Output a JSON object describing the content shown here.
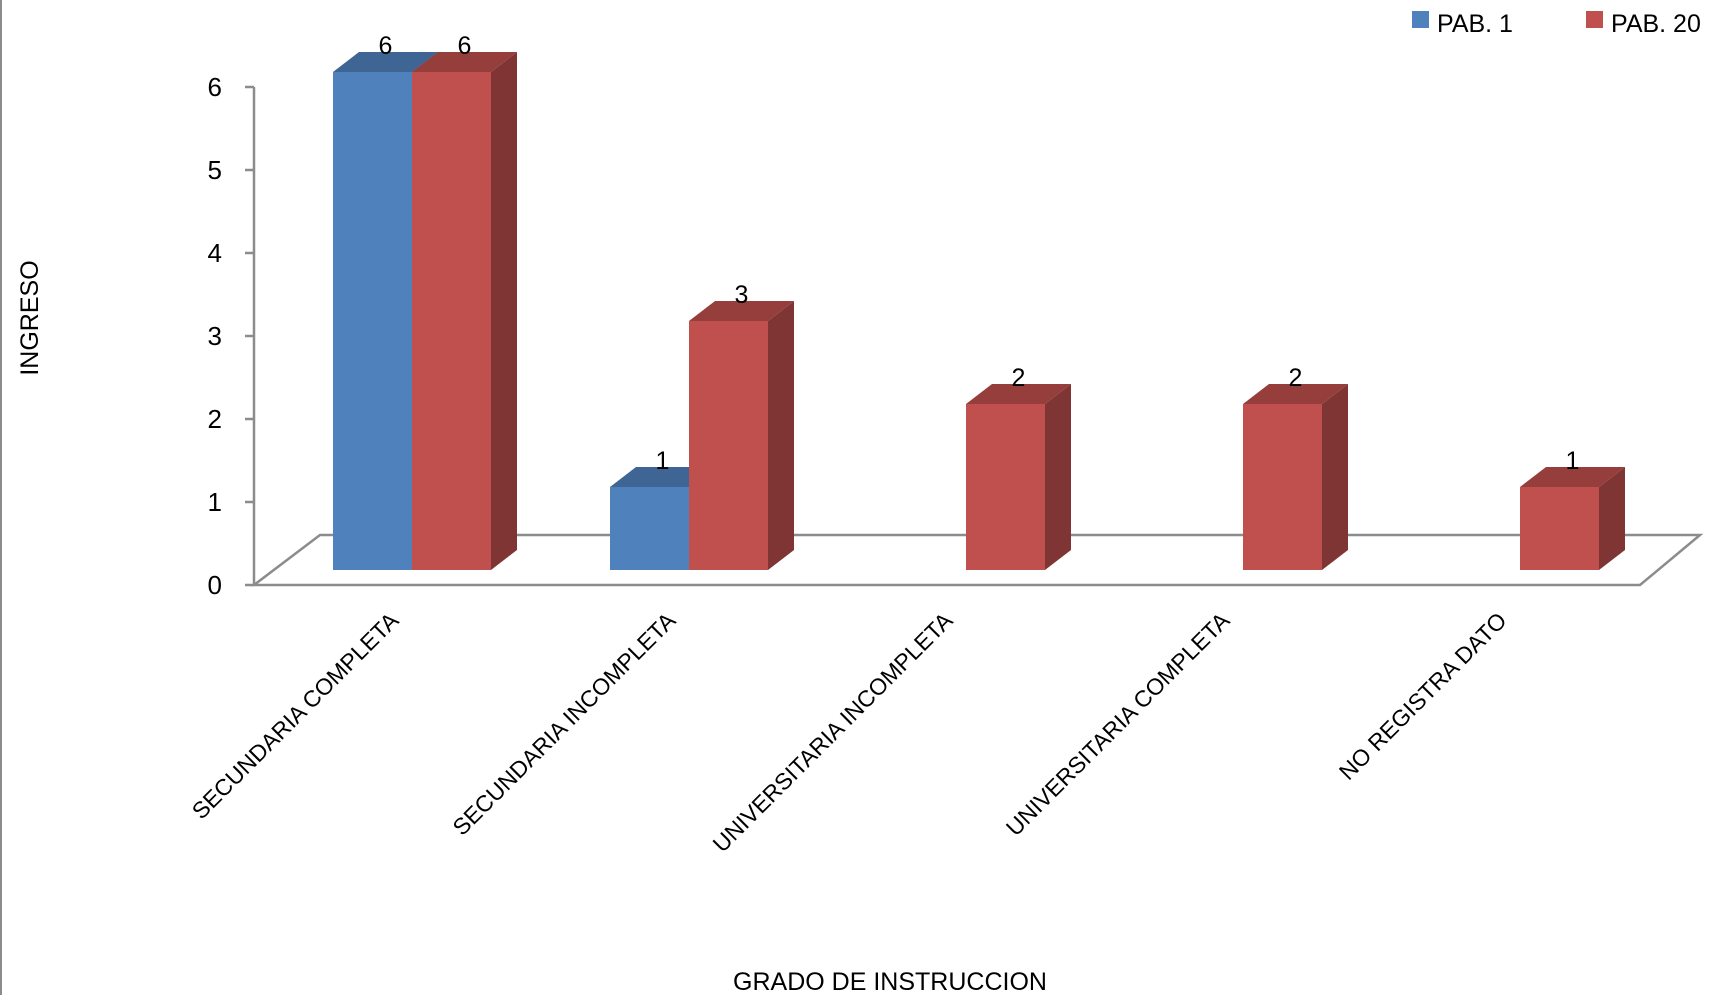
{
  "chart_data": {
    "type": "bar",
    "variant": "3d-clustered-column",
    "categories": [
      "SECUNDARIA COMPLETA",
      "SECUNDARIA INCOMPLETA",
      "UNIVERSITARIA INCOMPLETA",
      "UNIVERSITARIA COMPLETA",
      "NO REGISTRA DATO"
    ],
    "series": [
      {
        "name": "PAB. 1",
        "color": "#4f81bd",
        "values": [
          6,
          1,
          null,
          null,
          null
        ]
      },
      {
        "name": "PAB. 20",
        "color": "#c0504d",
        "values": [
          6,
          3,
          2,
          2,
          1
        ]
      }
    ],
    "xlabel": "GRADO DE INSTRUCCION",
    "ylabel": "INGRESO",
    "ylim": [
      0,
      6
    ],
    "yticks": [
      0,
      1,
      2,
      3,
      4,
      5,
      6
    ],
    "grid": false,
    "legend_position": "top-right",
    "data_labels": true
  }
}
